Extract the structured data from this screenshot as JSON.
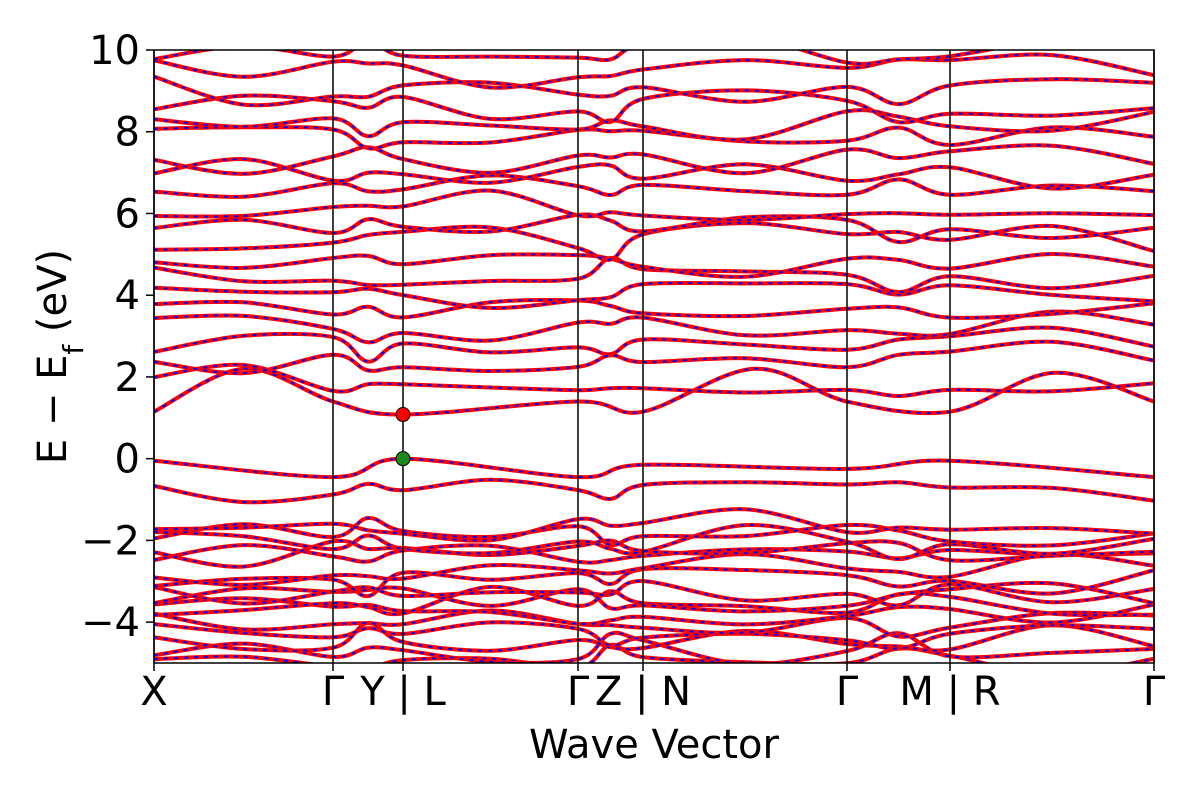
{
  "chart_data": {
    "type": "line",
    "xlabel": "Wave Vector",
    "ylabel_parts": [
      "E − E",
      "f",
      " (eV)"
    ],
    "ylim": [
      -5,
      10
    ],
    "yticks": [
      {
        "value": 10,
        "label": "10"
      },
      {
        "value": 8,
        "label": "8"
      },
      {
        "value": 6,
        "label": "6"
      },
      {
        "value": 4,
        "label": "4"
      },
      {
        "value": 2,
        "label": "2"
      },
      {
        "value": 0,
        "label": "0"
      },
      {
        "value": -2,
        "label": "−2"
      },
      {
        "value": -4,
        "label": "−4"
      }
    ],
    "high_symmetry_points": [
      {
        "position": 0.0,
        "label": "X"
      },
      {
        "position": 0.179,
        "label": "Γ"
      },
      {
        "position": 0.249,
        "label": "Y | L"
      },
      {
        "position": 0.424,
        "label": "Γ"
      },
      {
        "position": 0.489,
        "label": "Z | N"
      },
      {
        "position": 0.693,
        "label": "Γ"
      },
      {
        "position": 0.796,
        "label": "M | R"
      },
      {
        "position": 1.0,
        "label": "Γ"
      }
    ],
    "grid": false,
    "colors": {
      "band_primary": "#ff0000",
      "band_secondary": "#0000ff"
    },
    "band_edges": [
      {
        "name": "CBM",
        "x": 0.249,
        "energy": 1.08,
        "color": "#ff0000"
      },
      {
        "name": "VBM",
        "x": 0.249,
        "energy": 0.0,
        "color": "#1a8a1a"
      }
    ],
    "bands": {
      "valence_band_top": {
        "points": [
          [
            0.0,
            -0.05
          ],
          [
            0.179,
            -0.45
          ],
          [
            0.249,
            0.0
          ],
          [
            0.424,
            -0.45
          ],
          [
            0.489,
            -0.15
          ],
          [
            0.693,
            -0.25
          ],
          [
            0.796,
            -0.05
          ],
          [
            1.0,
            -0.45
          ]
        ]
      },
      "conduction_band_bottom": {
        "points": [
          [
            0.0,
            1.15
          ],
          [
            0.09,
            2.2
          ],
          [
            0.179,
            1.4
          ],
          [
            0.249,
            1.08
          ],
          [
            0.424,
            1.4
          ],
          [
            0.489,
            1.15
          ],
          [
            0.6,
            2.2
          ],
          [
            0.693,
            1.4
          ],
          [
            0.796,
            1.15
          ],
          [
            0.9,
            2.1
          ],
          [
            1.0,
            1.4
          ]
        ]
      }
    }
  }
}
